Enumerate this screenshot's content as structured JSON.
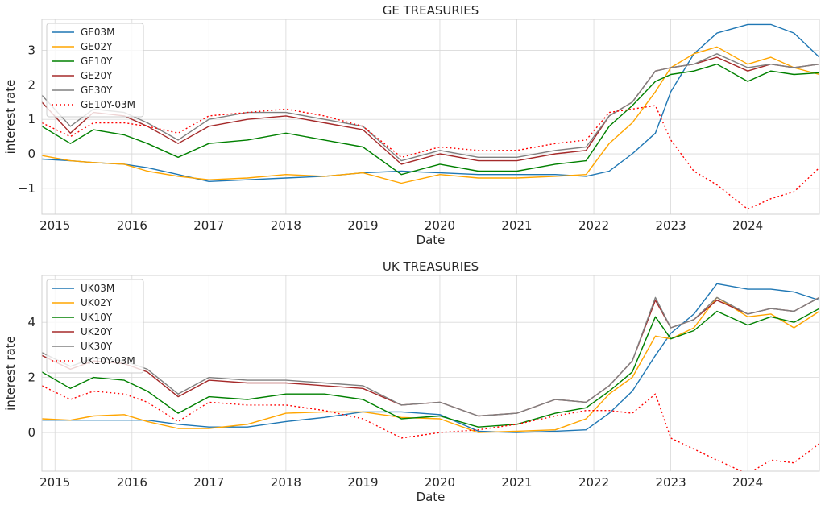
{
  "chart_data": [
    {
      "type": "line",
      "title": "GE TREASURIES",
      "xlabel": "Date",
      "ylabel": "interest rate",
      "xlim": [
        2014.83,
        2024.93
      ],
      "ylim": [
        -1.75,
        3.9
      ],
      "xticks": [
        2015,
        2016,
        2017,
        2018,
        2019,
        2020,
        2021,
        2022,
        2023,
        2024
      ],
      "yticks": [
        -1,
        0,
        1,
        2,
        3
      ],
      "grid": true,
      "legend_position": "upper-left",
      "series": [
        {
          "name": "GE03M",
          "color": "#1f77b4",
          "dash": "",
          "x": [
            2014.83,
            2015.2,
            2015.5,
            2015.9,
            2016.2,
            2016.6,
            2017.0,
            2017.5,
            2018.0,
            2018.5,
            2019.0,
            2019.5,
            2020.0,
            2020.5,
            2021.0,
            2021.5,
            2021.9,
            2022.2,
            2022.5,
            2022.8,
            2023.0,
            2023.3,
            2023.6,
            2024.0,
            2024.3,
            2024.6,
            2024.93
          ],
          "y": [
            -0.15,
            -0.2,
            -0.25,
            -0.3,
            -0.4,
            -0.6,
            -0.8,
            -0.75,
            -0.7,
            -0.65,
            -0.55,
            -0.5,
            -0.55,
            -0.6,
            -0.6,
            -0.6,
            -0.65,
            -0.5,
            0.0,
            0.6,
            1.8,
            2.9,
            3.5,
            3.75,
            3.75,
            3.5,
            2.8
          ]
        },
        {
          "name": "GE02Y",
          "color": "#ffa500",
          "dash": "",
          "x": [
            2014.83,
            2015.2,
            2015.5,
            2015.9,
            2016.2,
            2016.6,
            2017.0,
            2017.5,
            2018.0,
            2018.5,
            2019.0,
            2019.5,
            2020.0,
            2020.5,
            2021.0,
            2021.5,
            2021.9,
            2022.2,
            2022.5,
            2022.8,
            2023.0,
            2023.3,
            2023.6,
            2024.0,
            2024.3,
            2024.6,
            2024.93
          ],
          "y": [
            -0.05,
            -0.2,
            -0.25,
            -0.3,
            -0.5,
            -0.65,
            -0.75,
            -0.7,
            -0.6,
            -0.65,
            -0.55,
            -0.85,
            -0.6,
            -0.7,
            -0.7,
            -0.65,
            -0.6,
            0.3,
            0.9,
            1.8,
            2.5,
            2.9,
            3.1,
            2.6,
            2.8,
            2.5,
            2.3
          ]
        },
        {
          "name": "GE10Y",
          "color": "#008000",
          "dash": "",
          "x": [
            2014.83,
            2015.2,
            2015.5,
            2015.9,
            2016.2,
            2016.6,
            2017.0,
            2017.5,
            2018.0,
            2018.5,
            2019.0,
            2019.5,
            2020.0,
            2020.5,
            2021.0,
            2021.5,
            2021.9,
            2022.2,
            2022.5,
            2022.8,
            2023.0,
            2023.3,
            2023.6,
            2024.0,
            2024.3,
            2024.6,
            2024.93
          ],
          "y": [
            0.8,
            0.3,
            0.7,
            0.55,
            0.3,
            -0.1,
            0.3,
            0.4,
            0.6,
            0.4,
            0.2,
            -0.6,
            -0.3,
            -0.5,
            -0.5,
            -0.3,
            -0.2,
            0.8,
            1.4,
            2.1,
            2.3,
            2.4,
            2.6,
            2.1,
            2.4,
            2.3,
            2.35
          ]
        },
        {
          "name": "GE20Y",
          "color": "#a52a2a",
          "dash": "",
          "x": [
            2014.83,
            2015.2,
            2015.5,
            2015.9,
            2016.2,
            2016.6,
            2017.0,
            2017.5,
            2018.0,
            2018.5,
            2019.0,
            2019.5,
            2020.0,
            2020.5,
            2021.0,
            2021.5,
            2021.9,
            2022.2,
            2022.5,
            2022.8,
            2023.0,
            2023.3,
            2023.6,
            2024.0,
            2024.3,
            2024.6,
            2024.93
          ],
          "y": [
            1.5,
            0.6,
            1.2,
            1.1,
            0.8,
            0.3,
            0.8,
            1.0,
            1.1,
            0.9,
            0.7,
            -0.3,
            0.0,
            -0.2,
            -0.2,
            0.0,
            0.1,
            1.1,
            1.5,
            2.4,
            2.5,
            2.6,
            2.8,
            2.4,
            2.6,
            2.5,
            2.6
          ]
        },
        {
          "name": "GE30Y",
          "color": "#808080",
          "dash": "",
          "x": [
            2014.83,
            2015.2,
            2015.5,
            2015.9,
            2016.2,
            2016.6,
            2017.0,
            2017.5,
            2018.0,
            2018.5,
            2019.0,
            2019.5,
            2020.0,
            2020.5,
            2021.0,
            2021.5,
            2021.9,
            2022.2,
            2022.5,
            2022.8,
            2023.0,
            2023.3,
            2023.6,
            2024.0,
            2024.3,
            2024.6,
            2024.93
          ],
          "y": [
            1.7,
            0.8,
            1.3,
            1.2,
            0.9,
            0.4,
            1.0,
            1.2,
            1.2,
            1.0,
            0.8,
            -0.2,
            0.1,
            -0.1,
            -0.1,
            0.1,
            0.2,
            1.1,
            1.5,
            2.4,
            2.5,
            2.6,
            2.9,
            2.5,
            2.6,
            2.5,
            2.6
          ]
        },
        {
          "name": "GE10Y-03M",
          "color": "#ff0000",
          "dash": "2,3",
          "x": [
            2014.83,
            2015.2,
            2015.5,
            2015.9,
            2016.2,
            2016.6,
            2017.0,
            2017.5,
            2018.0,
            2018.5,
            2019.0,
            2019.5,
            2020.0,
            2020.5,
            2021.0,
            2021.5,
            2021.9,
            2022.2,
            2022.5,
            2022.8,
            2023.0,
            2023.3,
            2023.6,
            2024.0,
            2024.3,
            2024.6,
            2024.93
          ],
          "y": [
            0.9,
            0.5,
            0.9,
            0.9,
            0.8,
            0.6,
            1.1,
            1.2,
            1.3,
            1.1,
            0.8,
            -0.1,
            0.2,
            0.1,
            0.1,
            0.3,
            0.4,
            1.2,
            1.3,
            1.4,
            0.4,
            -0.5,
            -0.9,
            -1.6,
            -1.3,
            -1.1,
            -0.4
          ]
        }
      ]
    },
    {
      "type": "line",
      "title": "UK TREASURIES",
      "xlabel": "Date",
      "ylabel": "interest rate",
      "xlim": [
        2014.83,
        2024.93
      ],
      "ylim": [
        -1.4,
        5.7
      ],
      "xticks": [
        2015,
        2016,
        2017,
        2018,
        2019,
        2020,
        2021,
        2022,
        2023,
        2024
      ],
      "yticks": [
        0,
        2,
        4
      ],
      "grid": true,
      "legend_position": "upper-left",
      "series": [
        {
          "name": "UK03M",
          "color": "#1f77b4",
          "dash": "",
          "x": [
            2014.83,
            2015.2,
            2015.5,
            2015.9,
            2016.2,
            2016.6,
            2017.0,
            2017.5,
            2018.0,
            2018.5,
            2019.0,
            2019.5,
            2020.0,
            2020.5,
            2021.0,
            2021.5,
            2021.9,
            2022.2,
            2022.5,
            2022.8,
            2023.0,
            2023.3,
            2023.6,
            2024.0,
            2024.3,
            2024.6,
            2024.93
          ],
          "y": [
            0.45,
            0.45,
            0.45,
            0.45,
            0.45,
            0.3,
            0.2,
            0.2,
            0.4,
            0.55,
            0.75,
            0.75,
            0.65,
            0.05,
            0.0,
            0.05,
            0.1,
            0.7,
            1.5,
            2.8,
            3.6,
            4.3,
            5.4,
            5.2,
            5.2,
            5.1,
            4.8
          ]
        },
        {
          "name": "UK02Y",
          "color": "#ffa500",
          "dash": "",
          "x": [
            2014.83,
            2015.2,
            2015.5,
            2015.9,
            2016.2,
            2016.6,
            2017.0,
            2017.5,
            2018.0,
            2018.5,
            2019.0,
            2019.5,
            2020.0,
            2020.5,
            2021.0,
            2021.5,
            2021.9,
            2022.2,
            2022.5,
            2022.8,
            2023.0,
            2023.3,
            2023.6,
            2024.0,
            2024.3,
            2024.6,
            2024.93
          ],
          "y": [
            0.5,
            0.45,
            0.6,
            0.65,
            0.4,
            0.15,
            0.15,
            0.3,
            0.7,
            0.75,
            0.75,
            0.55,
            0.5,
            0.0,
            0.05,
            0.1,
            0.5,
            1.4,
            2.0,
            3.5,
            3.4,
            3.8,
            4.9,
            4.2,
            4.3,
            3.8,
            4.4
          ]
        },
        {
          "name": "UK10Y",
          "color": "#008000",
          "dash": "",
          "x": [
            2014.83,
            2015.2,
            2015.5,
            2015.9,
            2016.2,
            2016.6,
            2017.0,
            2017.5,
            2018.0,
            2018.5,
            2019.0,
            2019.5,
            2020.0,
            2020.5,
            2021.0,
            2021.5,
            2021.9,
            2022.2,
            2022.5,
            2022.8,
            2023.0,
            2023.3,
            2023.6,
            2024.0,
            2024.3,
            2024.6,
            2024.93
          ],
          "y": [
            2.2,
            1.6,
            2.0,
            1.9,
            1.5,
            0.7,
            1.3,
            1.2,
            1.4,
            1.4,
            1.2,
            0.5,
            0.6,
            0.2,
            0.3,
            0.7,
            0.9,
            1.5,
            2.2,
            4.2,
            3.4,
            3.7,
            4.4,
            3.9,
            4.2,
            4.0,
            4.5
          ]
        },
        {
          "name": "UK20Y",
          "color": "#a52a2a",
          "dash": "",
          "x": [
            2014.83,
            2015.2,
            2015.5,
            2015.9,
            2016.2,
            2016.6,
            2017.0,
            2017.5,
            2018.0,
            2018.5,
            2019.0,
            2019.5,
            2020.0,
            2020.5,
            2021.0,
            2021.5,
            2021.9,
            2022.2,
            2022.5,
            2022.8,
            2023.0,
            2023.3,
            2023.6,
            2024.0,
            2024.3,
            2024.6,
            2024.93
          ],
          "y": [
            2.8,
            2.3,
            2.6,
            2.5,
            2.2,
            1.3,
            1.9,
            1.8,
            1.8,
            1.7,
            1.6,
            1.0,
            1.1,
            0.6,
            0.7,
            1.2,
            1.1,
            1.7,
            2.6,
            4.8,
            3.8,
            4.1,
            4.8,
            4.3,
            4.5,
            4.4,
            4.9
          ]
        },
        {
          "name": "UK30Y",
          "color": "#808080",
          "dash": "",
          "x": [
            2014.83,
            2015.2,
            2015.5,
            2015.9,
            2016.2,
            2016.6,
            2017.0,
            2017.5,
            2018.0,
            2018.5,
            2019.0,
            2019.5,
            2020.0,
            2020.5,
            2021.0,
            2021.5,
            2021.9,
            2022.2,
            2022.5,
            2022.8,
            2023.0,
            2023.3,
            2023.6,
            2024.0,
            2024.3,
            2024.6,
            2024.93
          ],
          "y": [
            2.9,
            2.4,
            2.7,
            2.6,
            2.3,
            1.4,
            2.0,
            1.9,
            1.9,
            1.8,
            1.7,
            1.0,
            1.1,
            0.6,
            0.7,
            1.2,
            1.1,
            1.7,
            2.6,
            4.9,
            3.8,
            4.1,
            4.9,
            4.3,
            4.5,
            4.4,
            4.9
          ]
        },
        {
          "name": "UK10Y-03M",
          "color": "#ff0000",
          "dash": "2,3",
          "x": [
            2014.83,
            2015.2,
            2015.5,
            2015.9,
            2016.2,
            2016.6,
            2017.0,
            2017.5,
            2018.0,
            2018.5,
            2019.0,
            2019.5,
            2020.0,
            2020.5,
            2021.0,
            2021.5,
            2021.9,
            2022.2,
            2022.5,
            2022.8,
            2023.0,
            2023.3,
            2023.6,
            2024.0,
            2024.3,
            2024.6,
            2024.93
          ],
          "y": [
            1.7,
            1.2,
            1.5,
            1.4,
            1.1,
            0.4,
            1.1,
            1.0,
            1.0,
            0.8,
            0.5,
            -0.2,
            0.0,
            0.1,
            0.3,
            0.6,
            0.8,
            0.8,
            0.7,
            1.4,
            -0.2,
            -0.6,
            -1.0,
            -1.5,
            -1.0,
            -1.1,
            -0.4
          ]
        }
      ]
    }
  ]
}
